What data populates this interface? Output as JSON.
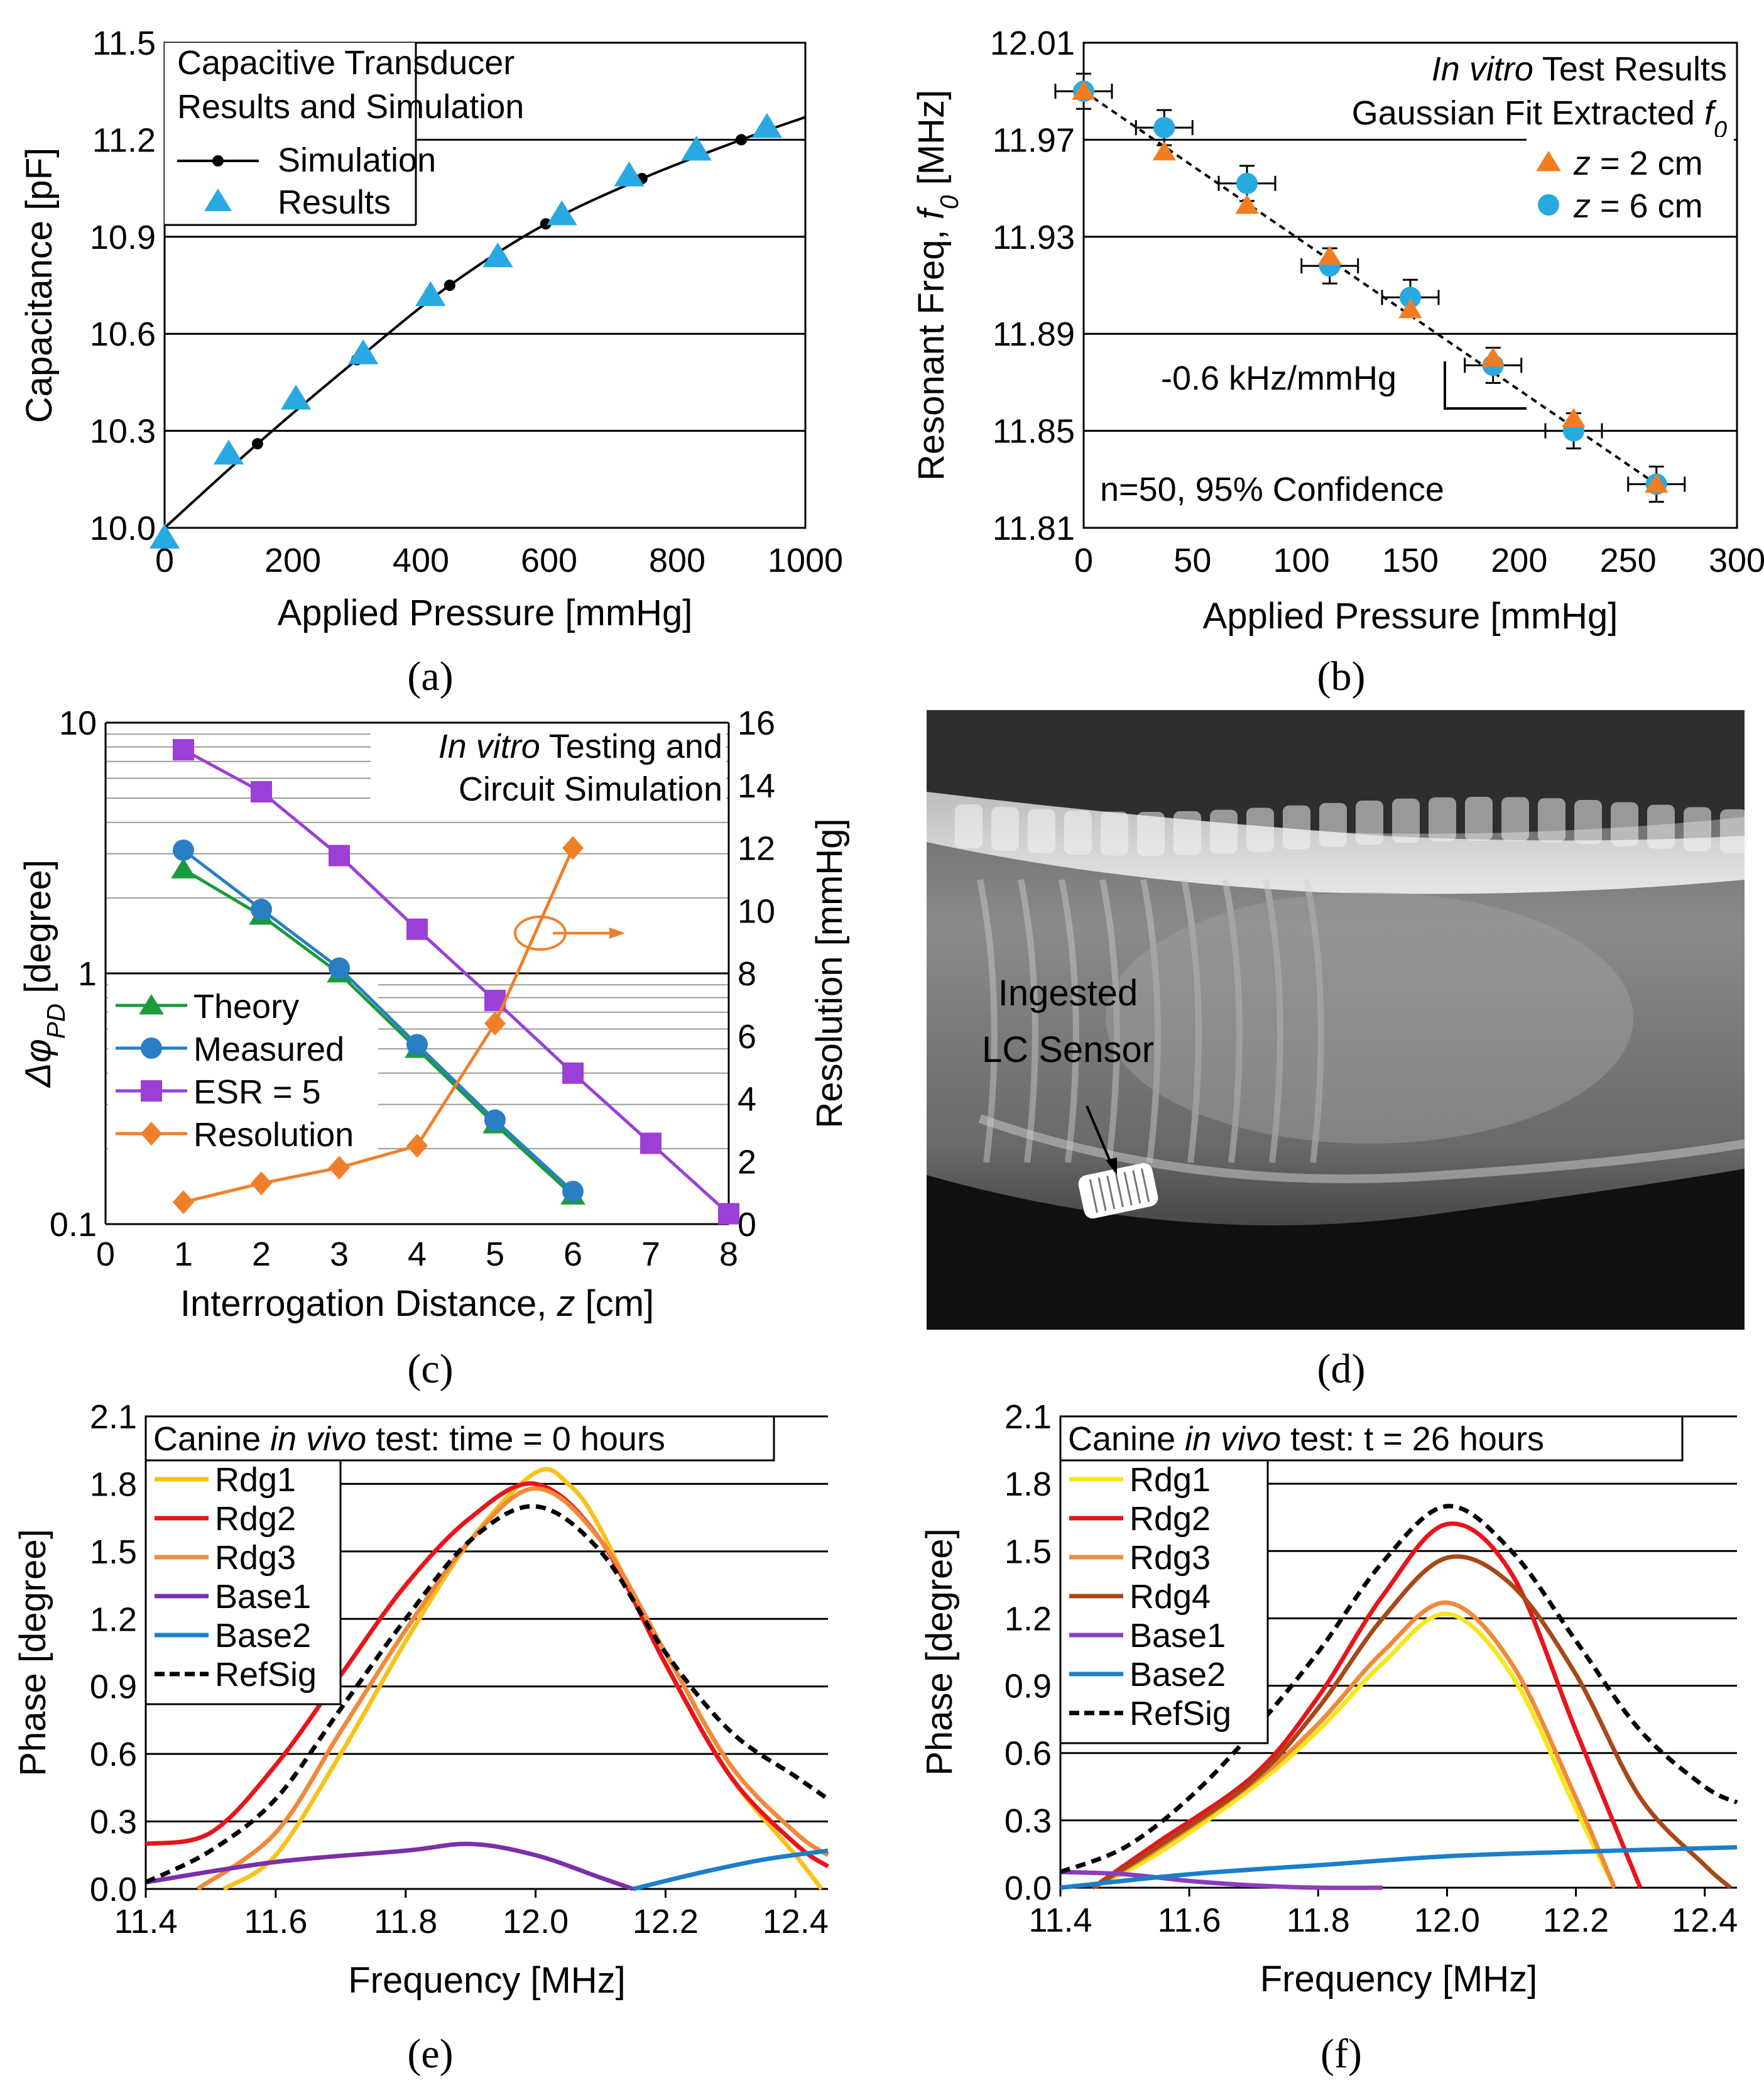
{
  "chart_data": [
    {
      "id": "a",
      "type": "line",
      "panel_label": "(a)",
      "title_lines": [
        "Capacitive Transducer",
        "Results and Simulation"
      ],
      "xlabel": "Applied  Pressure [mmHg]",
      "ylabel": "Capacitance [pF]",
      "xlim": [
        0,
        1000
      ],
      "ylim": [
        10.0,
        11.5
      ],
      "xticks": [
        "0",
        "200",
        "400",
        "600",
        "800",
        "1000"
      ],
      "yticks": [
        "10.0",
        "10.3",
        "10.6",
        "10.9",
        "11.2",
        "11.5"
      ],
      "series": [
        {
          "name": "Simulation",
          "color": "#000000",
          "x": [
            0,
            145,
            300,
            445,
            595,
            745,
            900,
            1000
          ],
          "y": [
            10.0,
            10.26,
            10.52,
            10.75,
            10.94,
            11.08,
            11.2,
            11.27
          ]
        },
        {
          "name": "Results",
          "color": "#29a9e1",
          "x": [
            0,
            100,
            205,
            310,
            415,
            520,
            620,
            725,
            830,
            940
          ],
          "y": [
            9.97,
            10.23,
            10.4,
            10.54,
            10.72,
            10.84,
            10.97,
            11.09,
            11.17,
            11.24
          ]
        }
      ]
    },
    {
      "id": "b",
      "type": "scatter",
      "panel_label": "(b)",
      "title_italic": "In vitro",
      "title_line1_rest": " Test Results",
      "title_line2": "Gaussian Fit Extracted ",
      "title_line2_italic": "f",
      "title_line2_sub": "0",
      "annotation": "-0.6 kHz/mmHg",
      "note": "n=50, 95% Confidence",
      "xlabel": "Applied Pressure [mmHg]",
      "ylabel_prefix": "Resonant Freq, ",
      "ylabel_italic": "f",
      "ylabel_sub": "0",
      "ylabel_suffix": " [MHz]",
      "xlim": [
        0,
        300
      ],
      "ylim": [
        11.81,
        12.01
      ],
      "xticks": [
        "0",
        "50",
        "100",
        "150",
        "200",
        "250",
        "300"
      ],
      "yticks": [
        "11.81",
        "11.85",
        "11.89",
        "11.93",
        "11.97",
        "12.01"
      ],
      "series": [
        {
          "name_italic": "z",
          "name_rest": " = 2 cm",
          "color": "#f47c20",
          "x": [
            0,
            37,
            75,
            113,
            150,
            188,
            225,
            263
          ],
          "y": [
            11.99,
            11.965,
            11.943,
            11.922,
            11.9,
            11.88,
            11.855,
            11.828
          ]
        },
        {
          "name_italic": "z",
          "name_rest": " = 6 cm",
          "color": "#29a9e1",
          "x": [
            0,
            37,
            75,
            113,
            150,
            188,
            225,
            263
          ],
          "y": [
            11.99,
            11.975,
            11.952,
            11.918,
            11.905,
            11.877,
            11.85,
            11.828
          ]
        }
      ],
      "fit": {
        "x": [
          0,
          263
        ],
        "y": [
          11.99,
          11.828
        ]
      }
    },
    {
      "id": "c",
      "type": "line",
      "panel_label": "(c)",
      "title_italic": "In vitro",
      "title_line1_rest": " Testing and",
      "title_line2": "Circuit Simulation",
      "xlabel_prefix": "Interrogation Distance, ",
      "xlabel_italic": "z",
      "xlabel_suffix": " [cm]",
      "ylabel": "Δφ_PD [degree]",
      "ylabel_main": "Δφ",
      "ylabel_sub": "PD",
      "ylabel_suffix": " [degree]",
      "y2label": "Resolution  [mmHg]",
      "xlim": [
        0,
        8
      ],
      "ylim": [
        0.1,
        10
      ],
      "y2lim": [
        0,
        16
      ],
      "xticks": [
        "0",
        "1",
        "2",
        "3",
        "4",
        "5",
        "6",
        "7",
        "8"
      ],
      "yticks": [
        "0.1",
        "1",
        "10"
      ],
      "y2ticks": [
        "0",
        "2",
        "4",
        "6",
        "8",
        "10",
        "12",
        "14",
        "16"
      ],
      "series": [
        {
          "name": "Theory",
          "color": "#1a9a3c",
          "marker": "triangle",
          "x": [
            1,
            2,
            3,
            4,
            5,
            6
          ],
          "y": [
            2.6,
            1.7,
            1.0,
            0.5,
            0.25,
            0.13
          ]
        },
        {
          "name": "Measured",
          "color": "#2a7fc4",
          "marker": "circle",
          "x": [
            1,
            2,
            3,
            4,
            5,
            6
          ],
          "y": [
            3.1,
            1.8,
            1.05,
            0.52,
            0.26,
            0.135
          ]
        },
        {
          "name": "ESR = 5",
          "color": "#9b3fd6",
          "marker": "square",
          "x": [
            1,
            2,
            3,
            4,
            5,
            6,
            7,
            8
          ],
          "y": [
            7.8,
            5.3,
            2.95,
            1.5,
            0.78,
            0.4,
            0.21,
            0.11
          ]
        },
        {
          "name": "Resolution",
          "color": "#f07f2a",
          "marker": "diamond",
          "axis": "right",
          "x": [
            1,
            2,
            3,
            4,
            5,
            6
          ],
          "y": [
            0.7,
            1.3,
            1.8,
            2.5,
            6.4,
            12
          ]
        }
      ]
    },
    {
      "id": "e",
      "type": "line",
      "panel_label": "(e)",
      "title_prefix": "Canine ",
      "title_italic": "in vivo",
      "title_suffix": " test: time = 0 hours",
      "xlabel": "Frequency [MHz]",
      "ylabel": "Phase [degree]",
      "xlim": [
        11.4,
        12.45
      ],
      "ylim": [
        0,
        2.1
      ],
      "xticks": [
        "11.4",
        "11.6",
        "11.8",
        "12.0",
        "12.2",
        "12.4"
      ],
      "yticks": [
        "0.0",
        "0.3",
        "0.6",
        "0.9",
        "1.2",
        "1.5",
        "1.8",
        "2.1"
      ],
      "series": [
        {
          "name": "Rdg1",
          "color": "#f7c21b",
          "x": [
            11.52,
            11.6,
            11.7,
            11.8,
            11.9,
            12.0,
            12.05,
            12.1,
            12.2,
            12.3,
            12.4,
            12.44
          ],
          "y": [
            0,
            0.15,
            0.6,
            1.1,
            1.55,
            1.85,
            1.8,
            1.6,
            1.0,
            0.5,
            0.15,
            0
          ]
        },
        {
          "name": "Rdg2",
          "color": "#e8141b",
          "x": [
            11.4,
            11.5,
            11.6,
            11.7,
            11.8,
            11.9,
            12.0,
            12.1,
            12.2,
            12.3,
            12.4,
            12.45
          ],
          "y": [
            0.2,
            0.25,
            0.55,
            0.95,
            1.35,
            1.65,
            1.8,
            1.55,
            1.0,
            0.5,
            0.2,
            0.1
          ]
        },
        {
          "name": "Rdg3",
          "color": "#f08a3a",
          "x": [
            11.48,
            11.6,
            11.7,
            11.8,
            11.9,
            12.0,
            12.1,
            12.2,
            12.3,
            12.4,
            12.45
          ],
          "y": [
            0,
            0.25,
            0.7,
            1.15,
            1.55,
            1.78,
            1.55,
            1.05,
            0.55,
            0.25,
            0.15
          ]
        },
        {
          "name": "Base1",
          "color": "#7b2fa8",
          "x": [
            11.4,
            11.6,
            11.8,
            11.9,
            12.0,
            12.1,
            12.15
          ],
          "y": [
            0.03,
            0.12,
            0.17,
            0.2,
            0.15,
            0.05,
            0
          ]
        },
        {
          "name": "Base2",
          "color": "#1a7fc9",
          "x": [
            12.15,
            12.25,
            12.35,
            12.45
          ],
          "y": [
            0,
            0.07,
            0.13,
            0.17
          ]
        },
        {
          "name": "RefSig",
          "color": "#000000",
          "dashed": true,
          "x": [
            11.4,
            11.5,
            11.6,
            11.7,
            11.8,
            11.9,
            12.0,
            12.1,
            12.2,
            12.3,
            12.4,
            12.45
          ],
          "y": [
            0.03,
            0.17,
            0.4,
            0.8,
            1.2,
            1.55,
            1.7,
            1.5,
            1.05,
            0.7,
            0.5,
            0.4
          ]
        }
      ]
    },
    {
      "id": "f",
      "type": "line",
      "panel_label": "(f)",
      "title_prefix": "Canine ",
      "title_italic": "in vivo",
      "title_suffix": " test: t = 26 hours",
      "xlabel": "Frequency [MHz]",
      "ylabel": "Phase [degree]",
      "xlim": [
        11.4,
        12.45
      ],
      "ylim": [
        0,
        2.1
      ],
      "xticks": [
        "11.4",
        "11.6",
        "11.8",
        "12.0",
        "12.2",
        "12.4"
      ],
      "yticks": [
        "0.0",
        "0.3",
        "0.6",
        "0.9",
        "1.2",
        "1.5",
        "1.8",
        "2.1"
      ],
      "series": [
        {
          "name": "Rdg1",
          "color": "#f7e61b",
          "x": [
            11.45,
            11.55,
            11.7,
            11.8,
            11.9,
            12.0,
            12.1,
            12.2,
            12.26
          ],
          "y": [
            0,
            0.15,
            0.45,
            0.7,
            1.0,
            1.22,
            0.95,
            0.35,
            0
          ]
        },
        {
          "name": "Rdg2",
          "color": "#e8141b",
          "x": [
            11.45,
            11.55,
            11.7,
            11.8,
            11.9,
            12.0,
            12.1,
            12.2,
            12.3
          ],
          "y": [
            0,
            0.2,
            0.5,
            0.85,
            1.3,
            1.62,
            1.4,
            0.7,
            0
          ]
        },
        {
          "name": "Rdg3",
          "color": "#f08a3a",
          "x": [
            11.45,
            11.55,
            11.7,
            11.8,
            11.9,
            12.0,
            12.1,
            12.2,
            12.26
          ],
          "y": [
            0,
            0.17,
            0.47,
            0.73,
            1.05,
            1.27,
            1.0,
            0.4,
            0
          ]
        },
        {
          "name": "Rdg4",
          "color": "#a6481a",
          "x": [
            11.45,
            11.55,
            11.7,
            11.8,
            11.9,
            12.0,
            12.1,
            12.2,
            12.3,
            12.4,
            12.44
          ],
          "y": [
            0,
            0.18,
            0.48,
            0.8,
            1.2,
            1.47,
            1.35,
            0.95,
            0.4,
            0.1,
            0
          ]
        },
        {
          "name": "Base1",
          "color": "#8b3dbf",
          "x": [
            11.4,
            11.5,
            11.6,
            11.7,
            11.8,
            11.9
          ],
          "y": [
            0.07,
            0.06,
            0.03,
            0.01,
            0,
            0
          ]
        },
        {
          "name": "Base2",
          "color": "#1a7fc9",
          "x": [
            11.4,
            11.6,
            11.8,
            12.0,
            12.2,
            12.45
          ],
          "y": [
            0,
            0.06,
            0.1,
            0.14,
            0.16,
            0.18
          ]
        },
        {
          "name": "RefSig",
          "color": "#000000",
          "dashed": true,
          "x": [
            11.4,
            11.5,
            11.6,
            11.7,
            11.8,
            11.9,
            12.0,
            12.1,
            12.2,
            12.3,
            12.4,
            12.45
          ],
          "y": [
            0.07,
            0.18,
            0.4,
            0.7,
            1.05,
            1.45,
            1.7,
            1.5,
            1.1,
            0.7,
            0.45,
            0.38
          ]
        }
      ]
    }
  ],
  "photo": {
    "panel_label": "(d)",
    "annotation_line1": "Ingested",
    "annotation_line2": "LC Sensor"
  }
}
